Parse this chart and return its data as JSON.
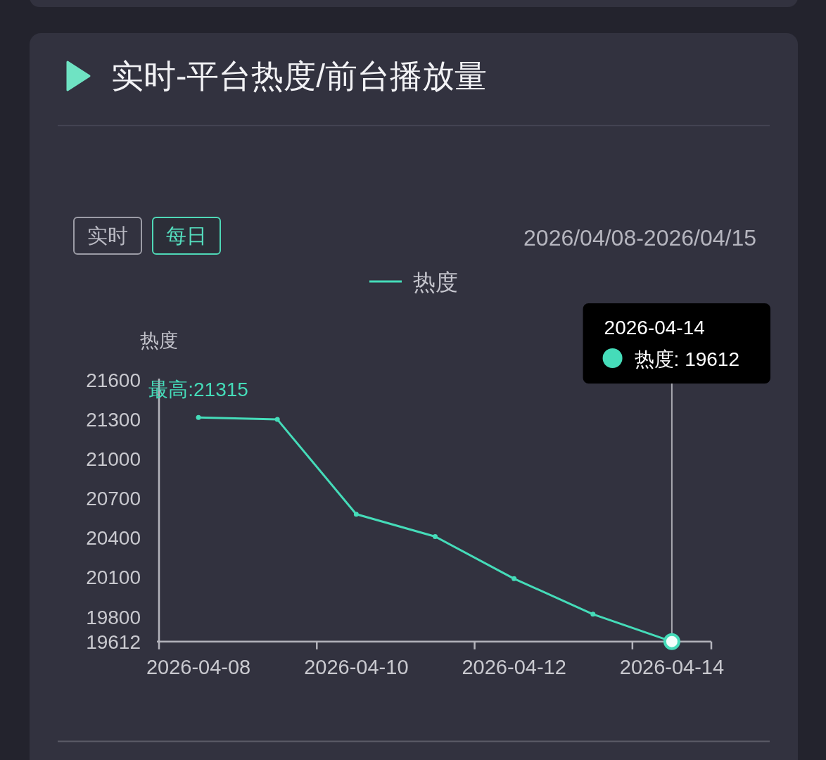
{
  "chart_data": {
    "type": "line",
    "title": "实时-平台热度/前台播放量",
    "subtitle": "2026/04/08-2026/04/15",
    "ylabel": "热度",
    "categories": [
      "2026-04-08",
      null,
      "2026-04-10",
      null,
      "2026-04-12",
      null,
      "2026-04-14"
    ],
    "series": [
      {
        "name": "热度",
        "color": "#45dcb9",
        "values": [
          21315,
          21300,
          20580,
          20410,
          20090,
          19820,
          19612
        ]
      }
    ],
    "ylim": [
      19612,
      21600
    ],
    "yticks": [
      19612,
      19800,
      20100,
      20400,
      20700,
      21000,
      21300,
      21600
    ],
    "legend": "top",
    "marker": "circle",
    "line_style": "solid",
    "ref_lines": [
      {
        "axis": "x",
        "value": "2026-04-14",
        "color": "#a8a8b0"
      }
    ],
    "annotations": [
      "实时",
      "每日",
      "2026-04-14",
      "热度: 19612",
      {
        "text": "最高:21315",
        "x": "2026-04-08",
        "y": 21315
      }
    ]
  }
}
